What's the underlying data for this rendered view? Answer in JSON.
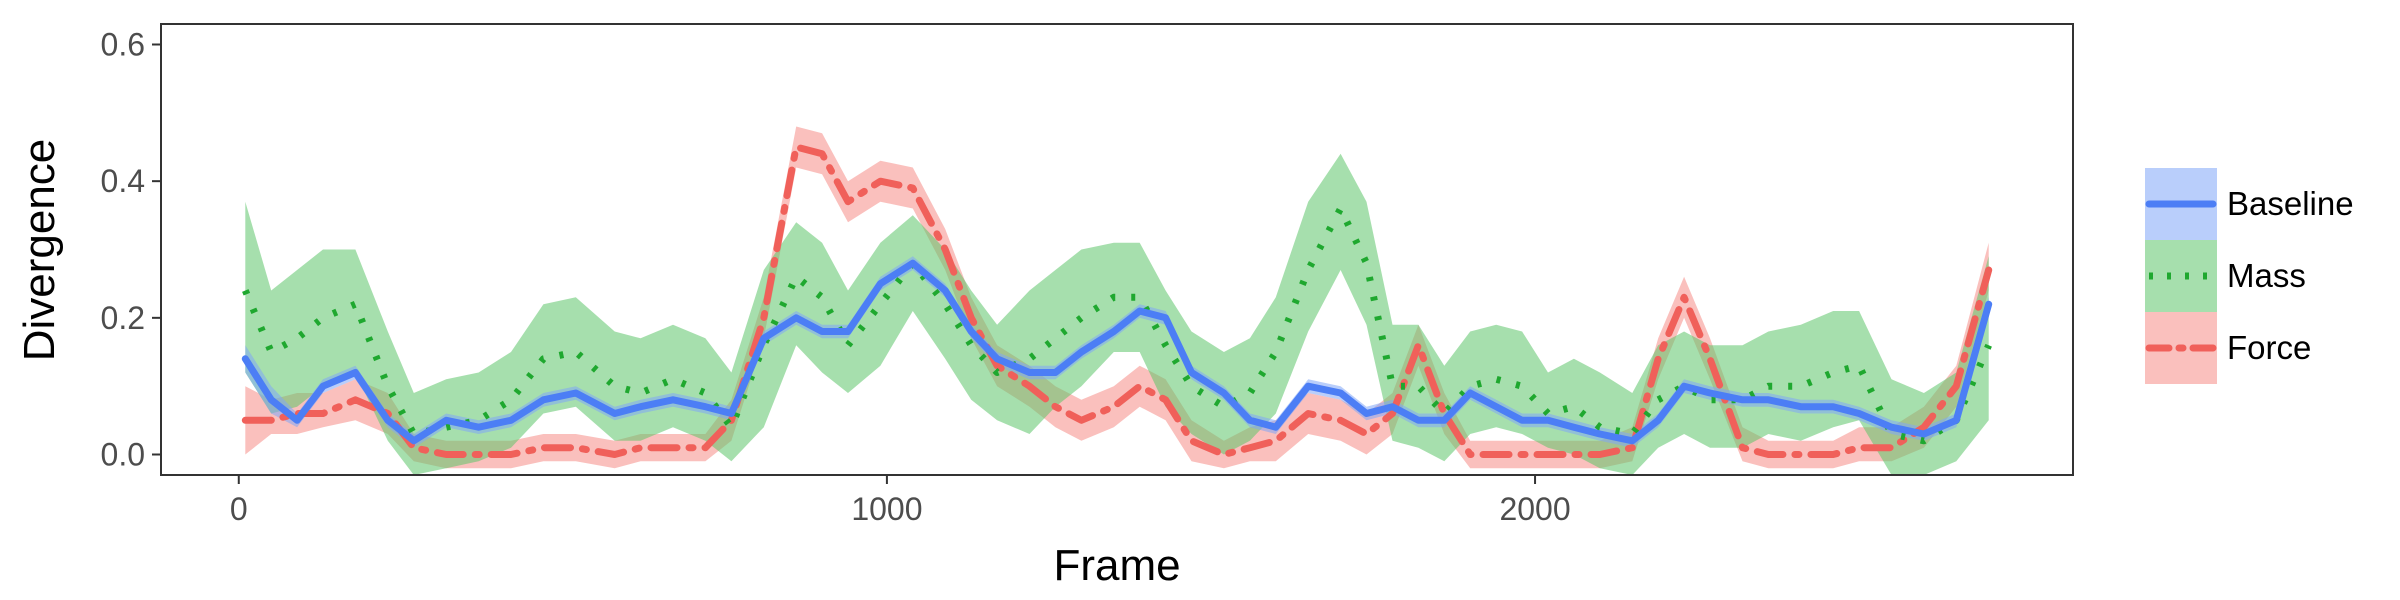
{
  "chart_data": {
    "type": "line",
    "xlabel": "Frame",
    "ylabel": "Divergence",
    "xlim": [
      -120,
      2830
    ],
    "ylim": [
      -0.03,
      0.63
    ],
    "x_ticks": [
      0,
      1000,
      2000
    ],
    "x_tick_labels": [
      "0",
      "1000",
      "2000"
    ],
    "y_ticks": [
      0.0,
      0.2,
      0.4,
      0.6
    ],
    "y_tick_labels": [
      "0.0",
      "0.2",
      "0.4",
      "0.6"
    ],
    "grid": false,
    "legend_position": "right",
    "x": [
      10,
      50,
      90,
      130,
      180,
      230,
      270,
      320,
      370,
      420,
      470,
      520,
      580,
      620,
      670,
      720,
      760,
      810,
      860,
      900,
      940,
      990,
      1040,
      1090,
      1130,
      1170,
      1220,
      1260,
      1300,
      1350,
      1390,
      1430,
      1470,
      1520,
      1560,
      1600,
      1650,
      1700,
      1740,
      1780,
      1820,
      1860,
      1900,
      1940,
      1980,
      2020,
      2060,
      2100,
      2150,
      2190,
      2230,
      2270,
      2320,
      2360,
      2410,
      2460,
      2500,
      2550,
      2600,
      2650,
      2700
    ],
    "series": [
      {
        "name": "Baseline",
        "color": "#4c7ef5",
        "dash": "solid",
        "y": [
          0.14,
          0.08,
          0.05,
          0.1,
          0.12,
          0.05,
          0.02,
          0.05,
          0.04,
          0.05,
          0.08,
          0.09,
          0.06,
          0.07,
          0.08,
          0.07,
          0.06,
          0.17,
          0.2,
          0.18,
          0.18,
          0.25,
          0.28,
          0.24,
          0.18,
          0.14,
          0.12,
          0.12,
          0.15,
          0.18,
          0.21,
          0.2,
          0.12,
          0.09,
          0.05,
          0.04,
          0.1,
          0.09,
          0.06,
          0.07,
          0.05,
          0.05,
          0.09,
          0.07,
          0.05,
          0.05,
          0.04,
          0.03,
          0.02,
          0.05,
          0.1,
          0.09,
          0.08,
          0.08,
          0.07,
          0.07,
          0.06,
          0.04,
          0.03,
          0.05,
          0.22
        ],
        "lower": [
          0.12,
          0.06,
          0.04,
          0.09,
          0.11,
          0.04,
          0.01,
          0.04,
          0.03,
          0.04,
          0.07,
          0.08,
          0.05,
          0.06,
          0.07,
          0.06,
          0.05,
          0.16,
          0.19,
          0.17,
          0.17,
          0.24,
          0.27,
          0.23,
          0.17,
          0.13,
          0.11,
          0.11,
          0.14,
          0.17,
          0.2,
          0.19,
          0.11,
          0.08,
          0.04,
          0.03,
          0.09,
          0.08,
          0.05,
          0.06,
          0.04,
          0.04,
          0.08,
          0.06,
          0.04,
          0.04,
          0.03,
          0.02,
          0.01,
          0.04,
          0.09,
          0.08,
          0.07,
          0.07,
          0.06,
          0.06,
          0.05,
          0.03,
          0.02,
          0.04,
          0.21
        ],
        "upper": [
          0.16,
          0.1,
          0.06,
          0.11,
          0.13,
          0.06,
          0.03,
          0.06,
          0.05,
          0.06,
          0.09,
          0.1,
          0.07,
          0.08,
          0.09,
          0.08,
          0.07,
          0.18,
          0.21,
          0.19,
          0.19,
          0.26,
          0.29,
          0.25,
          0.19,
          0.15,
          0.13,
          0.13,
          0.16,
          0.19,
          0.22,
          0.21,
          0.13,
          0.1,
          0.06,
          0.05,
          0.11,
          0.1,
          0.07,
          0.08,
          0.06,
          0.06,
          0.1,
          0.08,
          0.06,
          0.06,
          0.05,
          0.04,
          0.03,
          0.06,
          0.11,
          0.1,
          0.09,
          0.09,
          0.08,
          0.08,
          0.07,
          0.05,
          0.04,
          0.06,
          0.23
        ]
      },
      {
        "name": "Mass",
        "color": "#1fa82f",
        "dash": "dotted",
        "y": [
          0.24,
          0.15,
          0.17,
          0.2,
          0.22,
          0.1,
          0.03,
          0.04,
          0.05,
          0.08,
          0.14,
          0.15,
          0.1,
          0.09,
          0.11,
          0.09,
          0.04,
          0.16,
          0.26,
          0.23,
          0.16,
          0.22,
          0.28,
          0.22,
          0.16,
          0.12,
          0.14,
          0.17,
          0.2,
          0.23,
          0.23,
          0.16,
          0.1,
          0.07,
          0.09,
          0.15,
          0.27,
          0.36,
          0.28,
          0.1,
          0.1,
          0.06,
          0.1,
          0.11,
          0.1,
          0.06,
          0.07,
          0.04,
          0.03,
          0.08,
          0.1,
          0.08,
          0.08,
          0.1,
          0.1,
          0.12,
          0.13,
          0.03,
          0.02,
          0.05,
          0.16
        ],
        "lower": [
          0.12,
          0.06,
          0.07,
          0.1,
          0.12,
          0.02,
          -0.03,
          -0.02,
          -0.01,
          0.01,
          0.06,
          0.07,
          0.02,
          0.02,
          0.04,
          0.02,
          -0.01,
          0.04,
          0.16,
          0.12,
          0.09,
          0.13,
          0.21,
          0.14,
          0.08,
          0.05,
          0.03,
          0.07,
          0.1,
          0.15,
          0.15,
          0.07,
          0.03,
          0.0,
          0.02,
          0.06,
          0.18,
          0.27,
          0.19,
          0.02,
          0.01,
          -0.01,
          0.03,
          0.04,
          0.03,
          0.01,
          0.0,
          -0.02,
          -0.03,
          0.01,
          0.03,
          0.01,
          0.01,
          0.03,
          0.02,
          0.04,
          0.05,
          -0.03,
          -0.03,
          -0.01,
          0.05
        ],
        "upper": [
          0.37,
          0.24,
          0.27,
          0.3,
          0.3,
          0.18,
          0.09,
          0.11,
          0.12,
          0.15,
          0.22,
          0.23,
          0.18,
          0.17,
          0.19,
          0.17,
          0.12,
          0.27,
          0.34,
          0.31,
          0.24,
          0.31,
          0.35,
          0.3,
          0.24,
          0.19,
          0.24,
          0.27,
          0.3,
          0.31,
          0.31,
          0.24,
          0.18,
          0.15,
          0.17,
          0.23,
          0.37,
          0.44,
          0.37,
          0.19,
          0.19,
          0.13,
          0.18,
          0.19,
          0.18,
          0.12,
          0.14,
          0.12,
          0.09,
          0.16,
          0.18,
          0.16,
          0.16,
          0.18,
          0.19,
          0.21,
          0.21,
          0.11,
          0.09,
          0.12,
          0.29
        ]
      },
      {
        "name": "Force",
        "color": "#f0605a",
        "dash": "dashdot",
        "y": [
          0.05,
          0.05,
          0.06,
          0.06,
          0.08,
          0.06,
          0.01,
          0.0,
          0.0,
          0.0,
          0.01,
          0.01,
          0.0,
          0.01,
          0.01,
          0.01,
          0.05,
          0.2,
          0.45,
          0.44,
          0.37,
          0.4,
          0.39,
          0.3,
          0.2,
          0.13,
          0.1,
          0.07,
          0.05,
          0.07,
          0.1,
          0.08,
          0.02,
          0.0,
          0.01,
          0.02,
          0.06,
          0.05,
          0.03,
          0.06,
          0.16,
          0.06,
          0.0,
          0.0,
          0.0,
          0.0,
          0.0,
          0.0,
          0.01,
          0.14,
          0.23,
          0.14,
          0.01,
          0.0,
          0.0,
          0.0,
          0.01,
          0.01,
          0.04,
          0.1,
          0.27
        ],
        "lower": [
          0.0,
          0.03,
          0.03,
          0.04,
          0.05,
          0.03,
          -0.01,
          -0.02,
          -0.02,
          -0.02,
          -0.01,
          -0.01,
          -0.02,
          -0.01,
          -0.01,
          -0.01,
          0.02,
          0.17,
          0.42,
          0.41,
          0.34,
          0.37,
          0.36,
          0.27,
          0.17,
          0.1,
          0.07,
          0.04,
          0.02,
          0.04,
          0.07,
          0.05,
          -0.01,
          -0.02,
          -0.01,
          -0.01,
          0.03,
          0.02,
          0.0,
          0.03,
          0.13,
          0.03,
          -0.02,
          -0.02,
          -0.02,
          -0.02,
          -0.02,
          -0.02,
          -0.01,
          0.11,
          0.2,
          0.11,
          -0.01,
          -0.02,
          -0.02,
          -0.02,
          -0.01,
          -0.01,
          0.01,
          0.07,
          0.24
        ],
        "upper": [
          0.1,
          0.08,
          0.09,
          0.09,
          0.11,
          0.09,
          0.03,
          0.02,
          0.02,
          0.02,
          0.03,
          0.03,
          0.02,
          0.03,
          0.03,
          0.03,
          0.08,
          0.23,
          0.48,
          0.47,
          0.4,
          0.43,
          0.42,
          0.33,
          0.23,
          0.16,
          0.13,
          0.1,
          0.08,
          0.1,
          0.13,
          0.11,
          0.05,
          0.02,
          0.04,
          0.05,
          0.09,
          0.08,
          0.06,
          0.09,
          0.19,
          0.09,
          0.02,
          0.02,
          0.02,
          0.02,
          0.02,
          0.02,
          0.04,
          0.17,
          0.26,
          0.17,
          0.04,
          0.02,
          0.02,
          0.02,
          0.04,
          0.04,
          0.07,
          0.13,
          0.31
        ]
      }
    ]
  }
}
